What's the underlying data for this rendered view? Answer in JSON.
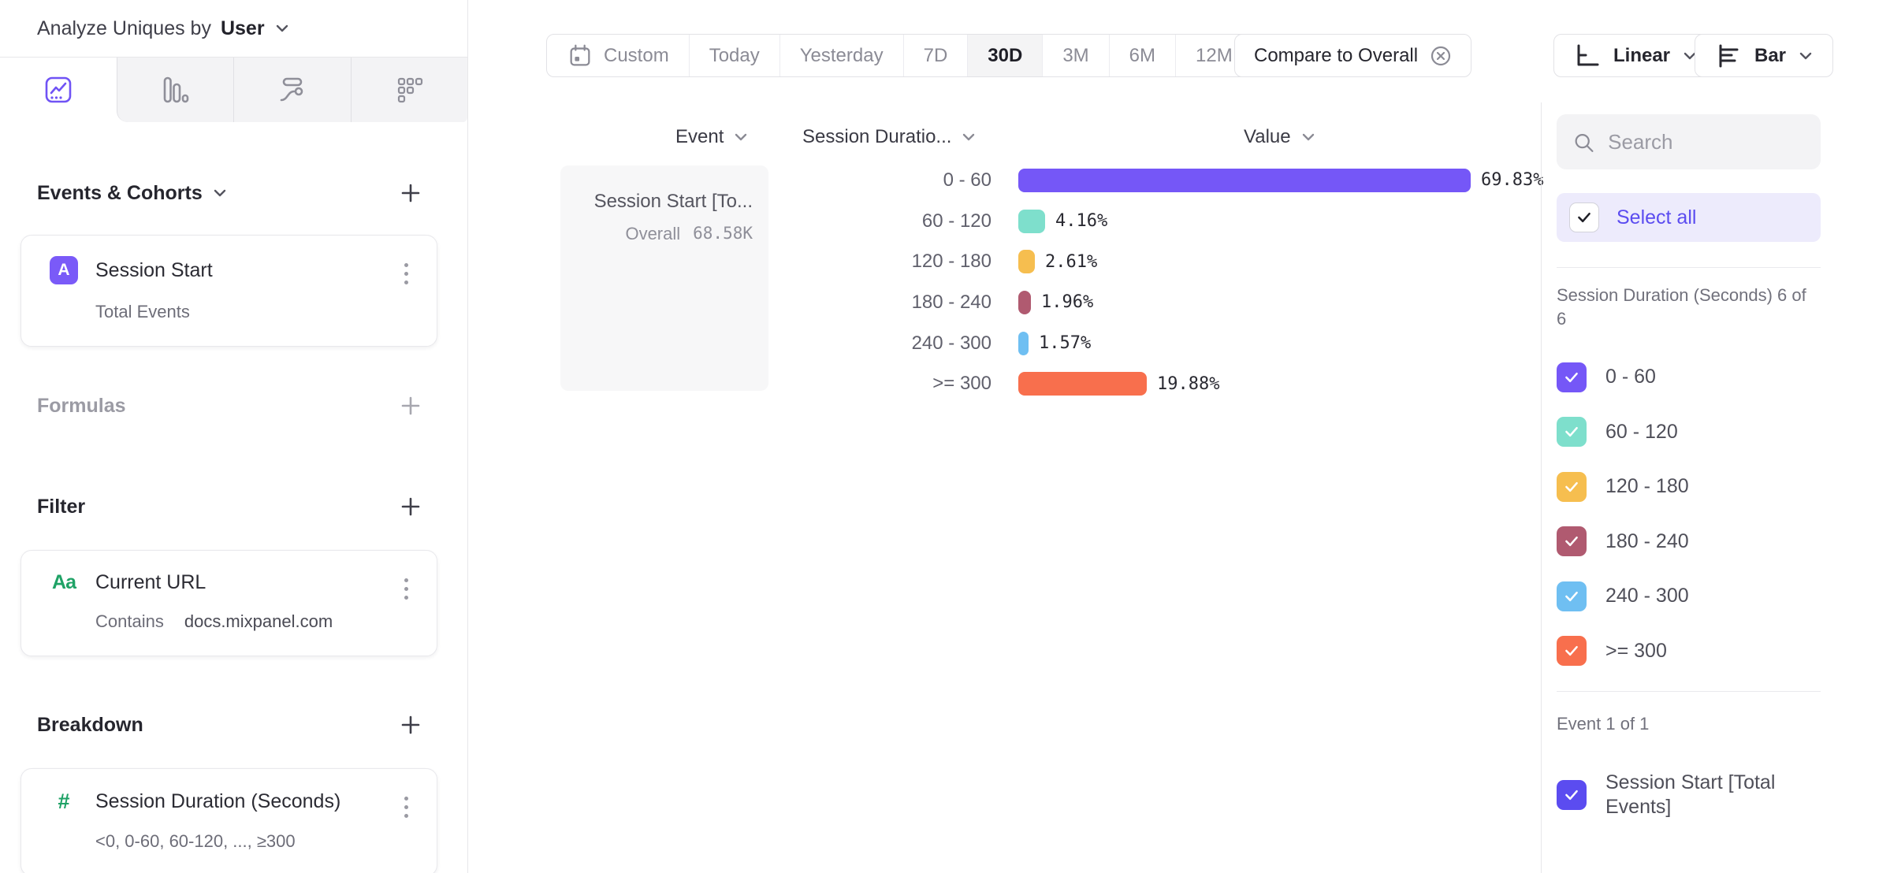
{
  "colors": {
    "accent_purple": "#7a5af8",
    "select_all_purple": "#5b4cf0",
    "green_property": "#1fa266",
    "gray_icon": "#8f8f99"
  },
  "left_panel": {
    "title_prefix": "Analyze Uniques by",
    "title_value": "User",
    "tabs": [
      {
        "icon": "insights-chart-icon",
        "selected": true
      },
      {
        "icon": "funnels-bars-icon",
        "selected": false
      },
      {
        "icon": "flows-icon",
        "selected": false
      },
      {
        "icon": "retention-grid-icon",
        "selected": false
      }
    ],
    "events_section": {
      "label": "Events & Cohorts",
      "card": {
        "badge": "A",
        "title": "Session Start",
        "subtitle": "Total Events"
      }
    },
    "formulas_label": "Formulas",
    "filter_section": {
      "label": "Filter",
      "card": {
        "icon": "Aa",
        "title": "Current URL",
        "operator": "Contains",
        "value": "docs.mixpanel.com"
      }
    },
    "breakdown_section": {
      "label": "Breakdown",
      "card": {
        "icon": "#",
        "title": "Session Duration (Seconds)",
        "subtitle": "<0, 0-60, 60-120, ..., ≥300"
      }
    }
  },
  "toolbar": {
    "date_ranges": [
      "Custom",
      "Today",
      "Yesterday",
      "7D",
      "30D",
      "3M",
      "6M",
      "12M"
    ],
    "selected_range": "30D",
    "compare_label": "Compare to Overall",
    "scale_label": "Linear",
    "chart_type_label": "Bar"
  },
  "chart": {
    "columns": {
      "event": "Event",
      "breakdown": "Session Duratio...",
      "value": "Value"
    },
    "event_cell": {
      "title": "Session Start [To...",
      "overall_label": "Overall",
      "overall_value": "68.58K"
    },
    "rows": [
      {
        "label": "0 - 60",
        "pct": "69.83%",
        "value": 69.83,
        "color": "#7557f7"
      },
      {
        "label": "60 - 120",
        "pct": "4.16%",
        "value": 4.16,
        "color": "#7edfcc"
      },
      {
        "label": "120 - 180",
        "pct": "2.61%",
        "value": 2.61,
        "color": "#f6be4f"
      },
      {
        "label": "180 - 240",
        "pct": "1.96%",
        "value": 1.96,
        "color": "#b05a70"
      },
      {
        "label": "240 - 300",
        "pct": "1.57%",
        "value": 1.57,
        "color": "#6fbff2"
      },
      {
        "label": ">= 300",
        "pct": "19.88%",
        "value": 19.88,
        "color": "#f86f4d"
      }
    ]
  },
  "chart_data": {
    "type": "bar",
    "orientation": "horizontal",
    "title": "Session Start [Total Events] by Session Duration (Seconds)",
    "categories": [
      "0 - 60",
      "60 - 120",
      "120 - 180",
      "180 - 240",
      "240 - 300",
      ">= 300"
    ],
    "values": [
      69.83,
      4.16,
      2.61,
      1.96,
      1.57,
      19.88
    ],
    "unit": "%",
    "overall_value": "68.58K",
    "series_name": "Session Start [Total Events]"
  },
  "right_panel": {
    "search_placeholder": "Search",
    "select_all_label": "Select all",
    "duration_group_label": "Session Duration (Seconds) 6 of 6",
    "duration_items": [
      {
        "label": "0 - 60",
        "color": "#7557f7",
        "checked": true
      },
      {
        "label": "60 - 120",
        "color": "#7edfcc",
        "checked": true
      },
      {
        "label": "120 - 180",
        "color": "#f6be4f",
        "checked": true
      },
      {
        "label": "180 - 240",
        "color": "#b05a70",
        "checked": true
      },
      {
        "label": "240 - 300",
        "color": "#6fbff2",
        "checked": true
      },
      {
        "label": ">= 300",
        "color": "#f86f4d",
        "checked": true
      }
    ],
    "event_group_label": "Event 1 of 1",
    "event_items": [
      {
        "label": "Session Start [Total Events]",
        "color": "#5b4cf0",
        "checked": true
      }
    ]
  }
}
